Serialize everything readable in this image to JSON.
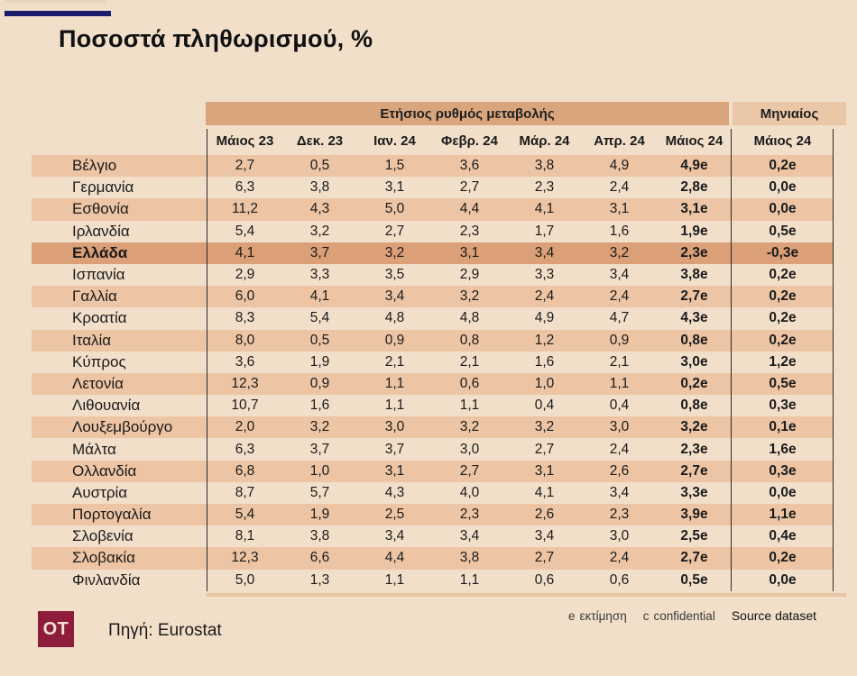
{
  "title": "Ποσοστά πληθωρισμού, %",
  "colors": {
    "background": "#f2dfca",
    "accent_navy": "#1b1b6e",
    "band_annual": "#d9a57c",
    "band_monthly": "#eac7a6",
    "row_stripe": "#edc5a4",
    "row_highlight": "#dba077",
    "logo_background": "#8e1c3b"
  },
  "chart_data": {
    "type": "table",
    "title": "Ποσοστά πληθωρισμού, %",
    "group_headers": {
      "annual": "Ετήσιος ρυθμός μεταβολής",
      "monthly": "Μηνιαίος"
    },
    "columns": [
      "Μάιος 23",
      "Δεκ. 23",
      "Ιαν. 24",
      "Φεβρ. 24",
      "Μάρ. 24",
      "Απρ. 24",
      "Μάιος 24"
    ],
    "monthly_column": "Μάιος 24",
    "rows": [
      {
        "country": "Βέλγιο",
        "values": [
          "2,7",
          "0,5",
          "1,5",
          "3,6",
          "3,8",
          "4,9",
          "4,9e"
        ],
        "monthly": "0,2e",
        "striped": true,
        "highlight": false
      },
      {
        "country": "Γερμανία",
        "values": [
          "6,3",
          "3,8",
          "3,1",
          "2,7",
          "2,3",
          "2,4",
          "2,8e"
        ],
        "monthly": "0,0e",
        "striped": false,
        "highlight": false
      },
      {
        "country": "Εσθονία",
        "values": [
          "11,2",
          "4,3",
          "5,0",
          "4,4",
          "4,1",
          "3,1",
          "3,1e"
        ],
        "monthly": "0,0e",
        "striped": true,
        "highlight": false
      },
      {
        "country": "Ιρλανδία",
        "values": [
          "5,4",
          "3,2",
          "2,7",
          "2,3",
          "1,7",
          "1,6",
          "1,9e"
        ],
        "monthly": "0,5e",
        "striped": false,
        "highlight": false
      },
      {
        "country": "Ελλάδα",
        "values": [
          "4,1",
          "3,7",
          "3,2",
          "3,1",
          "3,4",
          "3,2",
          "2,3e"
        ],
        "monthly": "-0,3e",
        "striped": false,
        "highlight": true
      },
      {
        "country": "Ισπανία",
        "values": [
          "2,9",
          "3,3",
          "3,5",
          "2,9",
          "3,3",
          "3,4",
          "3,8e"
        ],
        "monthly": "0,2e",
        "striped": false,
        "highlight": false
      },
      {
        "country": "Γαλλία",
        "values": [
          "6,0",
          "4,1",
          "3,4",
          "3,2",
          "2,4",
          "2,4",
          "2,7e"
        ],
        "monthly": "0,2e",
        "striped": true,
        "highlight": false
      },
      {
        "country": "Κροατία",
        "values": [
          "8,3",
          "5,4",
          "4,8",
          "4,8",
          "4,9",
          "4,7",
          "4,3e"
        ],
        "monthly": "0,2e",
        "striped": false,
        "highlight": false
      },
      {
        "country": "Ιταλία",
        "values": [
          "8,0",
          "0,5",
          "0,9",
          "0,8",
          "1,2",
          "0,9",
          "0,8e"
        ],
        "monthly": "0,2e",
        "striped": true,
        "highlight": false
      },
      {
        "country": "Κύπρος",
        "values": [
          "3,6",
          "1,9",
          "2,1",
          "2,1",
          "1,6",
          "2,1",
          "3,0e"
        ],
        "monthly": "1,2e",
        "striped": false,
        "highlight": false
      },
      {
        "country": "Λετονία",
        "values": [
          "12,3",
          "0,9",
          "1,1",
          "0,6",
          "1,0",
          "1,1",
          "0,2e"
        ],
        "monthly": "0,5e",
        "striped": true,
        "highlight": false
      },
      {
        "country": "Λιθουανία",
        "values": [
          "10,7",
          "1,6",
          "1,1",
          "1,1",
          "0,4",
          "0,4",
          "0,8e"
        ],
        "monthly": "0,3e",
        "striped": false,
        "highlight": false
      },
      {
        "country": "Λουξεμβούργο",
        "values": [
          "2,0",
          "3,2",
          "3,0",
          "3,2",
          "3,2",
          "3,0",
          "3,2e"
        ],
        "monthly": "0,1e",
        "striped": true,
        "highlight": false
      },
      {
        "country": "Μάλτα",
        "values": [
          "6,3",
          "3,7",
          "3,7",
          "3,0",
          "2,7",
          "2,4",
          "2,3e"
        ],
        "monthly": "1,6e",
        "striped": false,
        "highlight": false
      },
      {
        "country": "Ολλανδία",
        "values": [
          "6,8",
          "1,0",
          "3,1",
          "2,7",
          "3,1",
          "2,6",
          "2,7e"
        ],
        "monthly": "0,3e",
        "striped": true,
        "highlight": false
      },
      {
        "country": "Αυστρία",
        "values": [
          "8,7",
          "5,7",
          "4,3",
          "4,0",
          "4,1",
          "3,4",
          "3,3e"
        ],
        "monthly": "0,0e",
        "striped": false,
        "highlight": false
      },
      {
        "country": "Πορτογαλία",
        "values": [
          "5,4",
          "1,9",
          "2,5",
          "2,3",
          "2,6",
          "2,3",
          "3,9e"
        ],
        "monthly": "1,1e",
        "striped": true,
        "highlight": false
      },
      {
        "country": "Σλοβενία",
        "values": [
          "8,1",
          "3,8",
          "3,4",
          "3,4",
          "3,4",
          "3,0",
          "2,5e"
        ],
        "monthly": "0,4e",
        "striped": false,
        "highlight": false
      },
      {
        "country": "Σλοβακία",
        "values": [
          "12,3",
          "6,6",
          "4,4",
          "3,8",
          "2,7",
          "2,4",
          "2,7e"
        ],
        "monthly": "0,2e",
        "striped": true,
        "highlight": false
      },
      {
        "country": "Φινλανδία",
        "values": [
          "5,0",
          "1,3",
          "1,1",
          "1,1",
          "0,6",
          "0,6",
          "0,5e"
        ],
        "monthly": "0,0e",
        "striped": false,
        "highlight": false
      }
    ]
  },
  "footer": {
    "logo_text": "OT",
    "source": "Πηγή: Eurostat",
    "notes": [
      {
        "key": "e",
        "label": "εκτίμηση"
      },
      {
        "key": "c",
        "label": "confidential"
      }
    ],
    "dataset_link": "Source dataset"
  }
}
